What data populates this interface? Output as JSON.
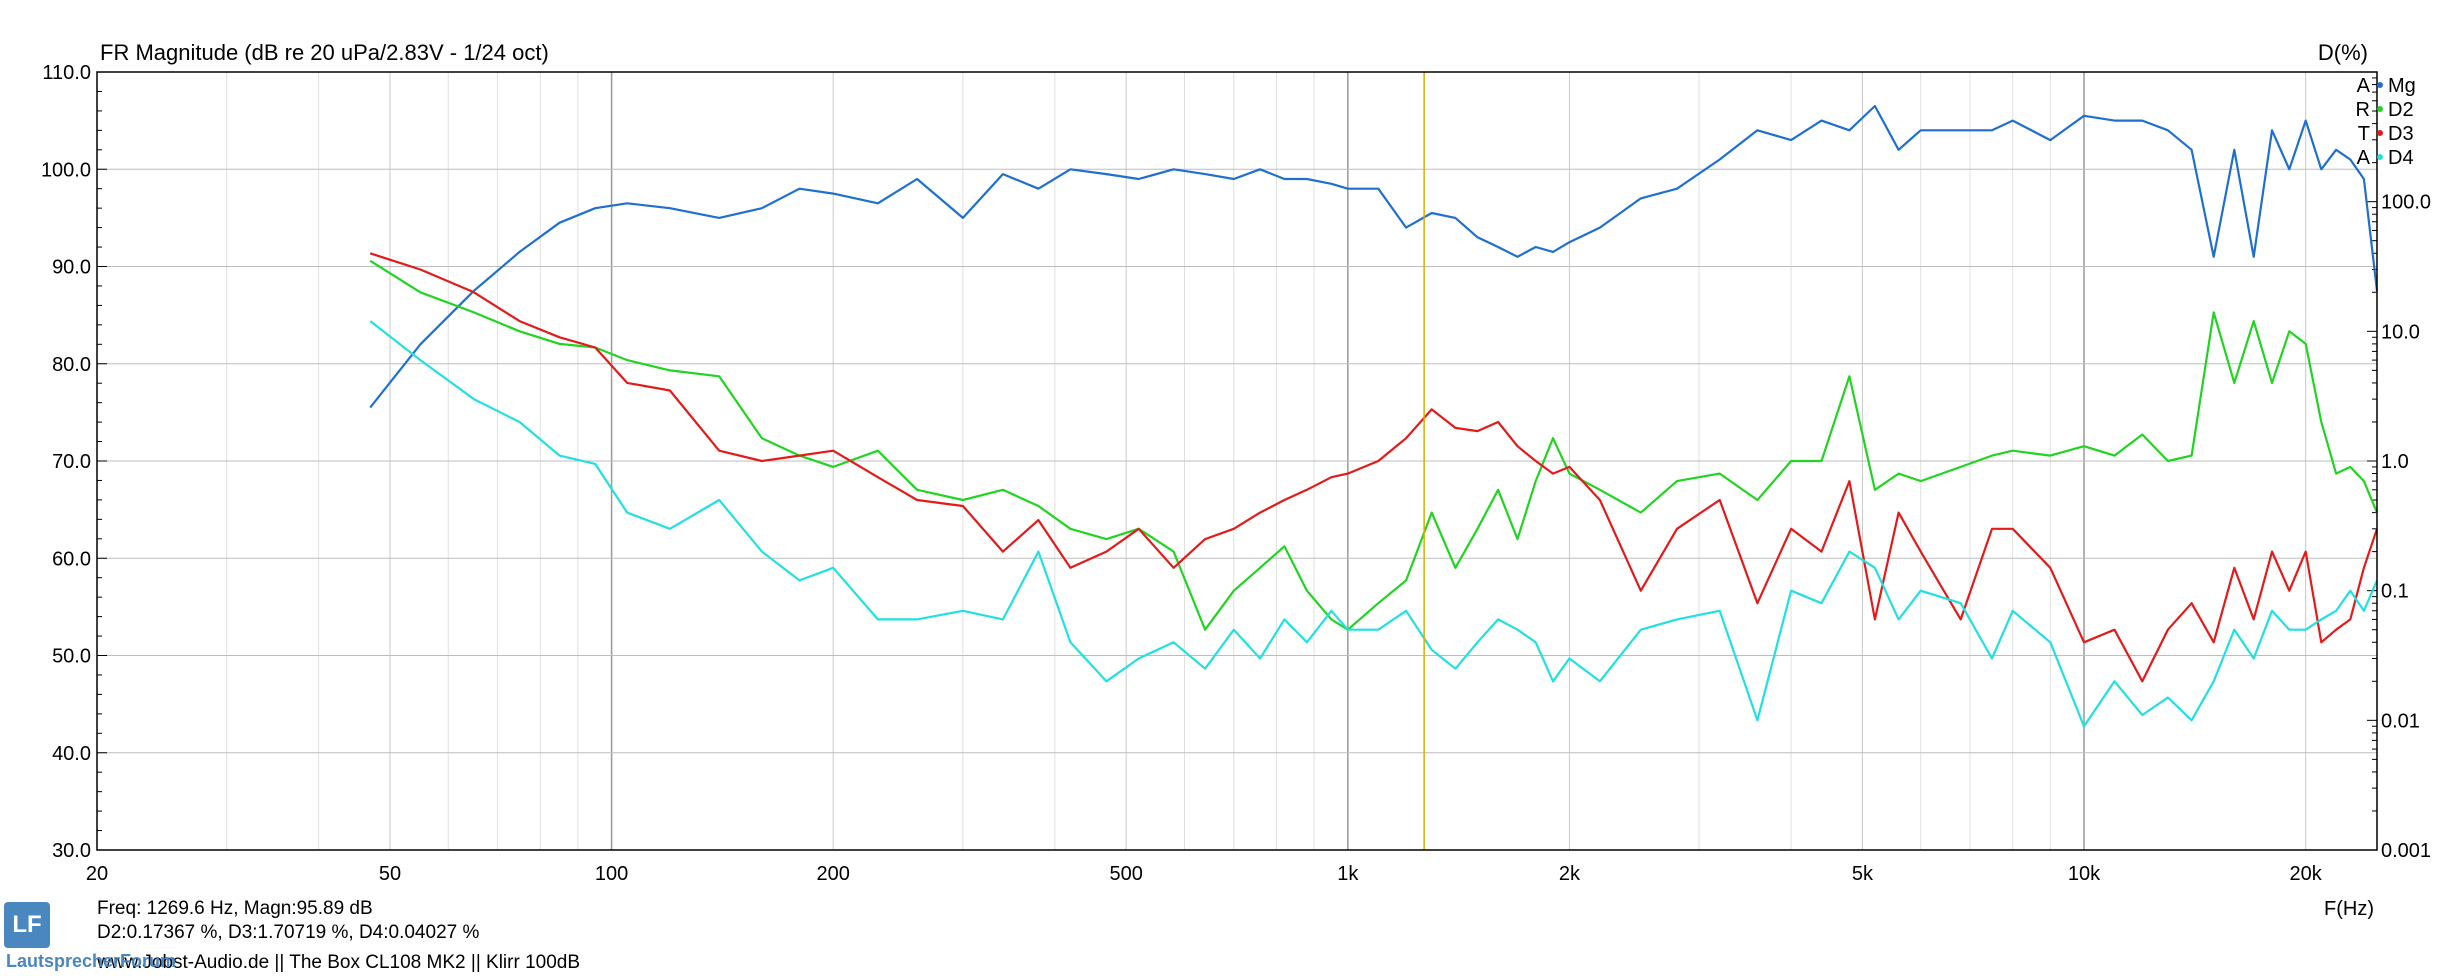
{
  "chart_data": {
    "type": "line",
    "title": "FR Magnitude (dB re 20 uPa/2.83V - 1/24 oct)",
    "right_axis_title": "D(%)",
    "xlabel": "F(Hz)",
    "x_scale": "log",
    "xlim": [
      20,
      25000
    ],
    "ylim_left": [
      30,
      110
    ],
    "ylim_right_log": [
      0.001,
      1000
    ],
    "x_ticks": [
      20,
      50,
      100,
      200,
      500,
      1000,
      2000,
      5000,
      10000,
      20000
    ],
    "x_tick_labels": [
      "20",
      "50",
      "100",
      "200",
      "500",
      "1k",
      "2k",
      "5k",
      "10k",
      "20k"
    ],
    "y_ticks_left": [
      "110.0",
      "100.0",
      "90.0",
      "80.0",
      "70.0",
      "60.0",
      "50.0",
      "40.0",
      "30.0"
    ],
    "y_ticks_right": [
      "100.0",
      "10.0",
      "1.0",
      "0.1",
      "0.01",
      "0.001"
    ],
    "y_ticks_right_values": [
      100,
      10,
      1,
      0.1,
      0.01,
      0.001
    ],
    "cursor_freq": 1269.6,
    "grid": true,
    "legend_position": "top-right",
    "legend_markers": [
      "A",
      "R",
      "T",
      "A"
    ],
    "colors": {
      "Mg": "#1f6fd1",
      "D2": "#22d422",
      "D3": "#e31a1a",
      "D4": "#22e0e0",
      "cursor": "#d4b000",
      "legend_marker": "#e31a1a"
    },
    "series": [
      {
        "name": "Mg",
        "axis": "left",
        "x": [
          47,
          55,
          65,
          75,
          85,
          95,
          105,
          120,
          140,
          160,
          180,
          200,
          230,
          260,
          300,
          340,
          380,
          420,
          470,
          520,
          580,
          640,
          700,
          760,
          820,
          880,
          950,
          1000,
          1100,
          1200,
          1300,
          1400,
          1500,
          1600,
          1700,
          1800,
          1900,
          2000,
          2200,
          2500,
          2800,
          3200,
          3600,
          4000,
          4400,
          4800,
          5200,
          5600,
          6000,
          6800,
          7500,
          8000,
          9000,
          10000,
          11000,
          12000,
          13000,
          14000,
          15000,
          16000,
          17000,
          18000,
          19000,
          20000,
          21000,
          22000,
          23000,
          24000,
          25000
        ],
        "y": [
          75.5,
          82,
          87.5,
          91.5,
          94.5,
          96,
          96.5,
          96,
          95,
          96,
          98,
          97.5,
          96.5,
          99,
          95,
          99.5,
          98,
          100,
          99.5,
          99,
          100,
          99.5,
          99,
          100,
          99,
          99,
          98.5,
          98,
          98,
          94,
          95.5,
          95,
          93,
          92,
          91,
          92,
          91.5,
          92.5,
          94,
          97,
          98,
          101,
          104,
          103,
          105,
          104,
          106.5,
          102,
          104,
          104,
          104,
          105,
          103,
          105.5,
          105,
          105,
          104,
          102,
          91,
          102,
          91,
          104,
          100,
          105,
          100,
          102,
          101,
          99,
          87.5
        ]
      },
      {
        "name": "D2",
        "axis": "right",
        "x": [
          47,
          55,
          65,
          75,
          85,
          95,
          105,
          120,
          140,
          160,
          180,
          200,
          230,
          260,
          300,
          340,
          380,
          420,
          470,
          520,
          580,
          640,
          700,
          760,
          820,
          880,
          950,
          1000,
          1100,
          1200,
          1300,
          1400,
          1500,
          1600,
          1700,
          1800,
          1900,
          2000,
          2200,
          2500,
          2800,
          3200,
          3600,
          4000,
          4400,
          4800,
          5200,
          5600,
          6000,
          6800,
          7500,
          8000,
          9000,
          10000,
          11000,
          12000,
          13000,
          14000,
          15000,
          16000,
          17000,
          18000,
          19000,
          20000,
          21000,
          22000,
          23000,
          24000,
          25000
        ],
        "y": [
          35,
          20,
          14,
          10,
          8,
          7.5,
          6,
          5,
          4.5,
          1.5,
          1.1,
          0.9,
          1.2,
          0.6,
          0.5,
          0.6,
          0.45,
          0.3,
          0.25,
          0.3,
          0.2,
          0.05,
          0.1,
          0.15,
          0.22,
          0.1,
          0.06,
          0.05,
          0.08,
          0.12,
          0.4,
          0.15,
          0.3,
          0.6,
          0.25,
          0.7,
          1.5,
          0.8,
          0.6,
          0.4,
          0.7,
          0.8,
          0.5,
          1.0,
          1.0,
          4.5,
          0.6,
          0.8,
          0.7,
          0.9,
          1.1,
          1.2,
          1.1,
          1.3,
          1.1,
          1.6,
          1.0,
          1.1,
          14,
          4.0,
          12,
          4.0,
          10,
          8,
          2.0,
          0.8,
          0.9,
          0.7,
          0.4
        ]
      },
      {
        "name": "D3",
        "axis": "right",
        "x": [
          47,
          55,
          65,
          75,
          85,
          95,
          105,
          120,
          140,
          160,
          180,
          200,
          230,
          260,
          300,
          340,
          380,
          420,
          470,
          520,
          580,
          640,
          700,
          760,
          820,
          880,
          950,
          1000,
          1100,
          1200,
          1300,
          1400,
          1500,
          1600,
          1700,
          1800,
          1900,
          2000,
          2200,
          2500,
          2800,
          3200,
          3600,
          4000,
          4400,
          4800,
          5200,
          5600,
          6000,
          6800,
          7500,
          8000,
          9000,
          10000,
          11000,
          12000,
          13000,
          14000,
          15000,
          16000,
          17000,
          18000,
          19000,
          20000,
          21000,
          22000,
          23000,
          24000,
          25000
        ],
        "y": [
          40,
          30,
          20,
          12,
          9,
          7.5,
          4,
          3.5,
          1.2,
          1.0,
          1.1,
          1.2,
          0.75,
          0.5,
          0.45,
          0.2,
          0.35,
          0.15,
          0.2,
          0.3,
          0.15,
          0.25,
          0.3,
          0.4,
          0.5,
          0.6,
          0.75,
          0.8,
          1.0,
          1.5,
          2.5,
          1.8,
          1.7,
          2.0,
          1.3,
          1.0,
          0.8,
          0.9,
          0.5,
          0.1,
          0.3,
          0.5,
          0.08,
          0.3,
          0.2,
          0.7,
          0.06,
          0.4,
          0.2,
          0.06,
          0.3,
          0.3,
          0.15,
          0.04,
          0.05,
          0.02,
          0.05,
          0.08,
          0.04,
          0.15,
          0.06,
          0.2,
          0.1,
          0.2,
          0.04,
          0.05,
          0.06,
          0.15,
          0.3
        ]
      },
      {
        "name": "D4",
        "axis": "right",
        "x": [
          47,
          55,
          65,
          75,
          85,
          95,
          105,
          120,
          140,
          160,
          180,
          200,
          230,
          260,
          300,
          340,
          380,
          420,
          470,
          520,
          580,
          640,
          700,
          760,
          820,
          880,
          950,
          1000,
          1100,
          1200,
          1300,
          1400,
          1500,
          1600,
          1700,
          1800,
          1900,
          2000,
          2200,
          2500,
          2800,
          3200,
          3600,
          4000,
          4400,
          4800,
          5200,
          5600,
          6000,
          6800,
          7500,
          8000,
          9000,
          10000,
          11000,
          12000,
          13000,
          14000,
          15000,
          16000,
          17000,
          18000,
          19000,
          20000,
          21000,
          22000,
          23000,
          24000,
          25000
        ],
        "y": [
          12,
          6,
          3,
          2.0,
          1.1,
          0.95,
          0.4,
          0.3,
          0.5,
          0.2,
          0.12,
          0.15,
          0.06,
          0.06,
          0.07,
          0.06,
          0.2,
          0.04,
          0.02,
          0.03,
          0.04,
          0.025,
          0.05,
          0.03,
          0.06,
          0.04,
          0.07,
          0.05,
          0.05,
          0.07,
          0.035,
          0.025,
          0.04,
          0.06,
          0.05,
          0.04,
          0.02,
          0.03,
          0.02,
          0.05,
          0.06,
          0.07,
          0.01,
          0.1,
          0.08,
          0.2,
          0.15,
          0.06,
          0.1,
          0.08,
          0.03,
          0.07,
          0.04,
          0.009,
          0.02,
          0.011,
          0.015,
          0.01,
          0.02,
          0.05,
          0.03,
          0.07,
          0.05,
          0.05,
          0.06,
          0.07,
          0.1,
          0.07,
          0.12
        ]
      }
    ]
  },
  "readout": {
    "line1": "Freq: 1269.6 Hz, Magn:95.89 dB",
    "line2": "D2:0.17367 %, D3:1.70719 %, D4:0.04027 %",
    "footer": "www.Jobst-Audio.de  ||  The Box CL108 MK2  ||  Klirr 100dB"
  },
  "logo": {
    "mark": "LF",
    "text": "LautsprecherForum"
  }
}
